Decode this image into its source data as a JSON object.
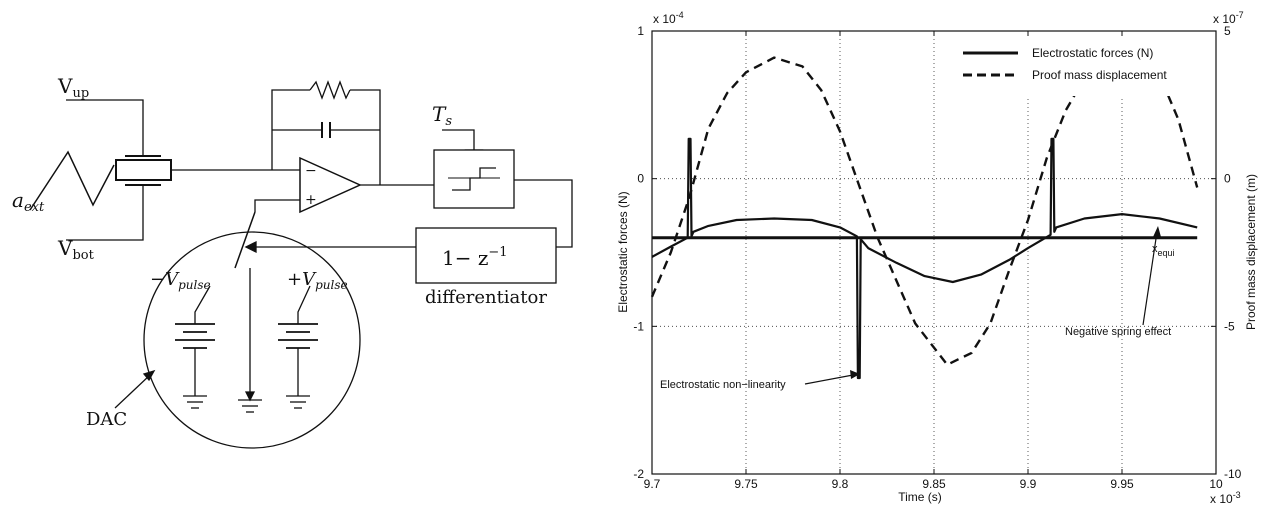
{
  "diagram": {
    "v_up": "V",
    "v_up_sub": "up",
    "v_bot": "V",
    "v_bot_sub": "bot",
    "a_ext": "a",
    "a_ext_sub": "ext",
    "t_s": "T",
    "t_s_sub": "s",
    "minus_vpulse": "−V",
    "plus_vpulse": "+V",
    "pulse_sub": "pulse",
    "differentiator_expr": "1− z",
    "differentiator_exp": "−1",
    "differentiator_label": "differentiator",
    "dac_label": "DAC",
    "opamp_minus": "−",
    "opamp_plus": "+"
  },
  "chart_data": {
    "type": "line",
    "xlabel": "Time (s)",
    "ylabel_left": "Electrostatic forces (N)",
    "ylabel_right": "Proof mass displacement (m)",
    "x_multiplier": "x 10",
    "x_multiplier_exp": "-3",
    "y_left_multiplier": "x 10",
    "y_left_multiplier_exp": "-4",
    "y_right_multiplier": "x 10",
    "y_right_multiplier_exp": "-7",
    "xlim": [
      9.7,
      10.0
    ],
    "ylim_left": [
      -2,
      1
    ],
    "ylim_right": [
      -10,
      5
    ],
    "x_ticks": [
      "9.7",
      "9.75",
      "9.8",
      "9.85",
      "9.9",
      "9.95",
      "10"
    ],
    "y_left_ticks": [
      "1",
      "0",
      "-1",
      "-2"
    ],
    "y_right_ticks": [
      "5",
      "0",
      "-5",
      "-10"
    ],
    "grid": true,
    "legend_position": "top-right",
    "series": [
      {
        "name": "Electrostatic forces (N)",
        "style": "solid",
        "axis": "left",
        "x": [
          9.7,
          9.71,
          9.719,
          9.7195,
          9.7205,
          9.721,
          9.722,
          9.73,
          9.745,
          9.765,
          9.785,
          9.8,
          9.809,
          9.8095,
          9.8105,
          9.811,
          9.815,
          9.83,
          9.845,
          9.86,
          9.875,
          9.89,
          9.9,
          9.912,
          9.9125,
          9.9135,
          9.914,
          9.915,
          9.93,
          9.95,
          9.97,
          9.99
        ],
        "y": [
          -0.53,
          -0.46,
          -0.4,
          0.27,
          0.27,
          -0.39,
          -0.36,
          -0.32,
          -0.28,
          -0.27,
          -0.28,
          -0.33,
          -0.39,
          -1.35,
          -1.35,
          -0.41,
          -0.47,
          -0.57,
          -0.66,
          -0.7,
          -0.65,
          -0.55,
          -0.47,
          -0.38,
          0.27,
          0.27,
          -0.36,
          -0.33,
          -0.27,
          -0.24,
          -0.27,
          -0.33
        ]
      },
      {
        "name": "Proof mass displacement",
        "style": "dashed",
        "axis": "right",
        "x": [
          9.7,
          9.71,
          9.72,
          9.73,
          9.74,
          9.75,
          9.765,
          9.78,
          9.79,
          9.8,
          9.81,
          9.82,
          9.84,
          9.857,
          9.87,
          9.88,
          9.89,
          9.9,
          9.91,
          9.92,
          9.93,
          9.94,
          9.955,
          9.97,
          9.98,
          9.99
        ],
        "y": [
          -4.0,
          -2.5,
          -0.6,
          1.7,
          2.9,
          3.6,
          4.1,
          3.8,
          3.0,
          1.6,
          -0.2,
          -2.0,
          -4.9,
          -6.3,
          -5.9,
          -4.9,
          -3.1,
          -1.4,
          0.7,
          2.3,
          3.4,
          3.9,
          4.3,
          3.5,
          2.0,
          -0.3
        ]
      },
      {
        "name": "",
        "style": "solid-thick",
        "axis": "left",
        "x": [
          9.7,
          9.99
        ],
        "y": [
          -0.4,
          -0.4
        ]
      }
    ],
    "annotations": [
      {
        "text": "x",
        "sub": "equi"
      },
      {
        "text": "Negative spring effect"
      },
      {
        "text": "Electrostatic non−linearity"
      }
    ]
  }
}
